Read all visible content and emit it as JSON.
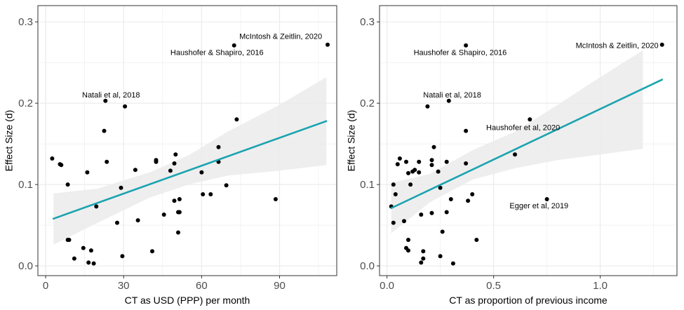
{
  "chart_data": [
    {
      "type": "scatter",
      "xlabel": "CT as USD (PPP) per month",
      "ylabel": "Effect Size (d)",
      "xlim": [
        -3,
        112
      ],
      "ylim": [
        -0.012,
        0.32
      ],
      "xticks": [
        0,
        30,
        60,
        90
      ],
      "xtick_labels": [
        "0",
        "30",
        "60",
        "90"
      ],
      "yticks": [
        0.0,
        0.1,
        0.2,
        0.3
      ],
      "ytick_labels": [
        "0.0",
        "0.1",
        "0.2",
        "0.3"
      ],
      "grid": true,
      "points": [
        {
          "x": 2.5,
          "y": 0.132
        },
        {
          "x": 5.5,
          "y": 0.125
        },
        {
          "x": 6.0,
          "y": 0.124
        },
        {
          "x": 8.5,
          "y": 0.1
        },
        {
          "x": 8.5,
          "y": 0.032
        },
        {
          "x": 9.0,
          "y": 0.032
        },
        {
          "x": 11.0,
          "y": 0.009
        },
        {
          "x": 14.5,
          "y": 0.022
        },
        {
          "x": 16.0,
          "y": 0.115
        },
        {
          "x": 16.5,
          "y": 0.004
        },
        {
          "x": 17.5,
          "y": 0.019
        },
        {
          "x": 18.5,
          "y": 0.003
        },
        {
          "x": 19.5,
          "y": 0.073
        },
        {
          "x": 22.5,
          "y": 0.166
        },
        {
          "x": 23.0,
          "y": 0.203
        },
        {
          "x": 23.5,
          "y": 0.128
        },
        {
          "x": 27.5,
          "y": 0.053
        },
        {
          "x": 29.0,
          "y": 0.096
        },
        {
          "x": 29.5,
          "y": 0.012
        },
        {
          "x": 30.5,
          "y": 0.196
        },
        {
          "x": 34.5,
          "y": 0.118
        },
        {
          "x": 35.5,
          "y": 0.056
        },
        {
          "x": 41.0,
          "y": 0.018
        },
        {
          "x": 42.5,
          "y": 0.13
        },
        {
          "x": 42.5,
          "y": 0.128
        },
        {
          "x": 45.5,
          "y": 0.063
        },
        {
          "x": 48.0,
          "y": 0.117
        },
        {
          "x": 49.5,
          "y": 0.126
        },
        {
          "x": 49.5,
          "y": 0.08
        },
        {
          "x": 50.0,
          "y": 0.137
        },
        {
          "x": 51.0,
          "y": 0.066
        },
        {
          "x": 51.0,
          "y": 0.041
        },
        {
          "x": 51.5,
          "y": 0.066
        },
        {
          "x": 51.5,
          "y": 0.082
        },
        {
          "x": 60.0,
          "y": 0.115
        },
        {
          "x": 60.5,
          "y": 0.088
        },
        {
          "x": 63.5,
          "y": 0.088
        },
        {
          "x": 66.5,
          "y": 0.146
        },
        {
          "x": 66.5,
          "y": 0.128
        },
        {
          "x": 69.5,
          "y": 0.099
        },
        {
          "x": 72.5,
          "y": 0.271
        },
        {
          "x": 73.5,
          "y": 0.18
        },
        {
          "x": 88.5,
          "y": 0.082
        },
        {
          "x": 108.5,
          "y": 0.272
        }
      ],
      "fit": {
        "x": [
          3,
          108
        ],
        "y": [
          0.058,
          0.178
        ]
      },
      "ci_band": {
        "x": [
          3,
          20,
          40,
          55,
          70,
          90,
          108
        ],
        "lower": [
          0.026,
          0.053,
          0.084,
          0.1,
          0.111,
          0.117,
          0.124
        ],
        "upper": [
          0.089,
          0.095,
          0.115,
          0.136,
          0.165,
          0.198,
          0.232
        ]
      },
      "annotations": [
        {
          "text": "McIntosh & Zeitlin, 2020",
          "x": 74.5,
          "y": 0.279
        },
        {
          "text": "Haushofer & Shapiro, 2016",
          "x": 48,
          "y": 0.259
        },
        {
          "text": "Natali et al, 2018",
          "x": 14,
          "y": 0.207
        }
      ]
    },
    {
      "type": "scatter",
      "xlabel": "CT as proportion of previous income",
      "ylabel": "Effect Size (d)",
      "xlim": [
        -0.035,
        1.36
      ],
      "ylim": [
        -0.012,
        0.32
      ],
      "xticks": [
        0.0,
        0.5,
        1.0
      ],
      "xtick_labels": [
        "0.0",
        "0.5",
        "1.0"
      ],
      "yticks": [
        0.0,
        0.1,
        0.2,
        0.3
      ],
      "ytick_labels": [
        "0.0",
        "0.1",
        "0.2",
        "0.3"
      ],
      "grid": true,
      "points": [
        {
          "x": 0.02,
          "y": 0.073
        },
        {
          "x": 0.03,
          "y": 0.1
        },
        {
          "x": 0.03,
          "y": 0.053
        },
        {
          "x": 0.04,
          "y": 0.088
        },
        {
          "x": 0.05,
          "y": 0.125
        },
        {
          "x": 0.06,
          "y": 0.132
        },
        {
          "x": 0.08,
          "y": 0.055
        },
        {
          "x": 0.09,
          "y": 0.128
        },
        {
          "x": 0.09,
          "y": 0.022
        },
        {
          "x": 0.1,
          "y": 0.114
        },
        {
          "x": 0.1,
          "y": 0.019
        },
        {
          "x": 0.1,
          "y": 0.032
        },
        {
          "x": 0.11,
          "y": 0.1
        },
        {
          "x": 0.12,
          "y": 0.116
        },
        {
          "x": 0.13,
          "y": 0.118
        },
        {
          "x": 0.15,
          "y": 0.128
        },
        {
          "x": 0.15,
          "y": 0.115
        },
        {
          "x": 0.16,
          "y": 0.063
        },
        {
          "x": 0.16,
          "y": 0.004
        },
        {
          "x": 0.17,
          "y": 0.009
        },
        {
          "x": 0.17,
          "y": 0.018
        },
        {
          "x": 0.19,
          "y": 0.196
        },
        {
          "x": 0.21,
          "y": 0.065
        },
        {
          "x": 0.21,
          "y": 0.13
        },
        {
          "x": 0.21,
          "y": 0.124
        },
        {
          "x": 0.22,
          "y": 0.146
        },
        {
          "x": 0.24,
          "y": 0.116
        },
        {
          "x": 0.25,
          "y": 0.096
        },
        {
          "x": 0.25,
          "y": 0.012
        },
        {
          "x": 0.26,
          "y": 0.042
        },
        {
          "x": 0.28,
          "y": 0.128
        },
        {
          "x": 0.28,
          "y": 0.066
        },
        {
          "x": 0.29,
          "y": 0.203
        },
        {
          "x": 0.3,
          "y": 0.082
        },
        {
          "x": 0.31,
          "y": 0.003
        },
        {
          "x": 0.37,
          "y": 0.271
        },
        {
          "x": 0.37,
          "y": 0.166
        },
        {
          "x": 0.37,
          "y": 0.126
        },
        {
          "x": 0.38,
          "y": 0.08
        },
        {
          "x": 0.4,
          "y": 0.088
        },
        {
          "x": 0.42,
          "y": 0.032
        },
        {
          "x": 0.6,
          "y": 0.137
        },
        {
          "x": 0.67,
          "y": 0.18
        },
        {
          "x": 0.75,
          "y": 0.082
        },
        {
          "x": 1.29,
          "y": 0.272
        }
      ],
      "fit": {
        "x": [
          0.02,
          1.29
        ],
        "y": [
          0.071,
          0.229
        ]
      },
      "ci_band": {
        "x": [
          0.02,
          0.2,
          0.4,
          0.6,
          0.8,
          1.0,
          1.2
        ],
        "lower": [
          0.04,
          0.078,
          0.106,
          0.12,
          0.13,
          0.137,
          0.144
        ],
        "upper": [
          0.102,
          0.113,
          0.142,
          0.165,
          0.198,
          0.232,
          0.265
        ]
      },
      "annotations": [
        {
          "text": "McIntosh & Zeitlin, 2020",
          "x": 0.885,
          "y": 0.268
        },
        {
          "text": "Haushofer & Shapiro, 2016",
          "x": 0.125,
          "y": 0.259
        },
        {
          "text": "Natali et al, 2018",
          "x": 0.17,
          "y": 0.207
        },
        {
          "text": "Haushofer et al, 2020",
          "x": 0.465,
          "y": 0.167
        },
        {
          "text": "Egger et al, 2019",
          "x": 0.575,
          "y": 0.071
        }
      ]
    }
  ],
  "colors": {
    "fit_line": "#1aa3b0",
    "ci_band": "#ebebeb",
    "points": "#000000",
    "grid": "#ebebeb",
    "panel_border": "#333333"
  }
}
